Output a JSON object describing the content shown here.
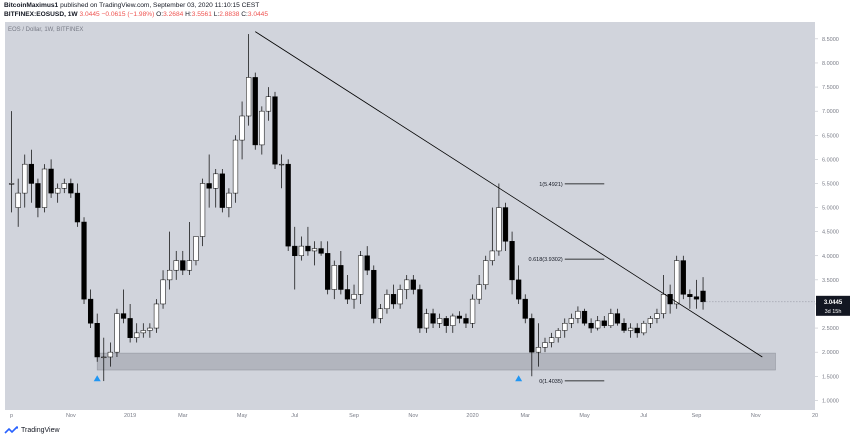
{
  "header": {
    "author": "BitcoinMaximus1",
    "published_text": "published on TradingView.com, September 03, 2020 11:10:15 CEST",
    "symbol": "BITFINEX:EOSUSD, 1W",
    "price_value": "3.0445",
    "change_text": "−0.0615 (−1.98%)",
    "ohlc": [
      {
        "label": "O:",
        "value": "3.2684"
      },
      {
        "label": "H:",
        "value": "3.5561"
      },
      {
        "label": "L:",
        "value": "2.8838"
      },
      {
        "label": "C:",
        "value": "3.0445"
      }
    ]
  },
  "footer": {
    "brand": "TradingView"
  },
  "colors": {
    "background": "#d1d4dc",
    "candle_up_fill": "#ffffff",
    "candle_down_fill": "#000000",
    "candle_outline": "#000000",
    "support_zone": "#b2b5be",
    "marker": "#2196f3",
    "price_label_bg": "#131722"
  },
  "chart_data": {
    "type": "candlestick",
    "title": "EOS / Dollar, 1W, BITFINEX",
    "y_scale": "linear",
    "ylim": [
      0.8,
      8.85
    ],
    "y_ticks": [
      "1.0000",
      "1.5000",
      "2.0000",
      "2.5000",
      "3.0000",
      "3.5000",
      "4.0000",
      "4.5000",
      "5.0000",
      "5.5000",
      "6.0000",
      "6.5000",
      "7.0000",
      "7.5000",
      "8.0000",
      "8.5000"
    ],
    "x_ticks": [
      {
        "label": "p",
        "week": 0
      },
      {
        "label": "Nov",
        "week": 9
      },
      {
        "label": "2019",
        "week": 18
      },
      {
        "label": "Mar",
        "week": 26
      },
      {
        "label": "May",
        "week": 35
      },
      {
        "label": "Jul",
        "week": 43
      },
      {
        "label": "Sep",
        "week": 52
      },
      {
        "label": "Nov",
        "week": 61
      },
      {
        "label": "2020",
        "week": 70
      },
      {
        "label": "Mar",
        "week": 78
      },
      {
        "label": "May",
        "week": 87
      },
      {
        "label": "Jul",
        "week": 96
      },
      {
        "label": "Sep",
        "week": 104
      },
      {
        "label": "Nov",
        "week": 113
      },
      {
        "label": "20",
        "week": 122
      }
    ],
    "week_range": [
      -1,
      122
    ],
    "candles": [
      {
        "o": 5.5,
        "h": 7.0,
        "l": 4.9,
        "c": 5.5
      },
      {
        "o": 5.0,
        "h": 5.6,
        "l": 4.6,
        "c": 5.3
      },
      {
        "o": 5.3,
        "h": 6.1,
        "l": 5.0,
        "c": 5.9
      },
      {
        "o": 5.9,
        "h": 6.2,
        "l": 5.1,
        "c": 5.5
      },
      {
        "o": 5.5,
        "h": 5.6,
        "l": 4.8,
        "c": 5.0
      },
      {
        "o": 5.0,
        "h": 5.9,
        "l": 4.9,
        "c": 5.8
      },
      {
        "o": 5.8,
        "h": 6.0,
        "l": 5.2,
        "c": 5.3
      },
      {
        "o": 5.3,
        "h": 5.5,
        "l": 5.1,
        "c": 5.4
      },
      {
        "o": 5.4,
        "h": 5.6,
        "l": 5.3,
        "c": 5.5
      },
      {
        "o": 5.5,
        "h": 5.6,
        "l": 5.2,
        "c": 5.3
      },
      {
        "o": 5.3,
        "h": 5.5,
        "l": 4.6,
        "c": 4.7
      },
      {
        "o": 4.7,
        "h": 4.8,
        "l": 3.0,
        "c": 3.1
      },
      {
        "o": 3.1,
        "h": 3.3,
        "l": 2.5,
        "c": 2.6
      },
      {
        "o": 2.6,
        "h": 2.8,
        "l": 1.8,
        "c": 1.9
      },
      {
        "o": 1.9,
        "h": 2.3,
        "l": 1.4,
        "c": 1.9
      },
      {
        "o": 1.9,
        "h": 2.2,
        "l": 1.7,
        "c": 2.0
      },
      {
        "o": 2.0,
        "h": 2.9,
        "l": 1.9,
        "c": 2.8
      },
      {
        "o": 2.8,
        "h": 3.3,
        "l": 2.6,
        "c": 2.7
      },
      {
        "o": 2.7,
        "h": 3.0,
        "l": 2.2,
        "c": 2.3
      },
      {
        "o": 2.3,
        "h": 2.6,
        "l": 2.2,
        "c": 2.4
      },
      {
        "o": 2.4,
        "h": 2.6,
        "l": 2.3,
        "c": 2.45
      },
      {
        "o": 2.45,
        "h": 2.6,
        "l": 2.3,
        "c": 2.5
      },
      {
        "o": 2.5,
        "h": 3.1,
        "l": 2.4,
        "c": 3.0
      },
      {
        "o": 3.0,
        "h": 3.7,
        "l": 2.9,
        "c": 3.5
      },
      {
        "o": 3.5,
        "h": 4.5,
        "l": 3.3,
        "c": 3.7
      },
      {
        "o": 3.7,
        "h": 4.1,
        "l": 3.5,
        "c": 3.9
      },
      {
        "o": 3.9,
        "h": 4.1,
        "l": 3.6,
        "c": 3.7
      },
      {
        "o": 3.7,
        "h": 4.7,
        "l": 3.6,
        "c": 3.9
      },
      {
        "o": 3.9,
        "h": 4.4,
        "l": 3.8,
        "c": 4.4
      },
      {
        "o": 4.4,
        "h": 5.6,
        "l": 4.2,
        "c": 5.5
      },
      {
        "o": 5.5,
        "h": 6.1,
        "l": 5.0,
        "c": 5.4
      },
      {
        "o": 5.4,
        "h": 5.8,
        "l": 5.0,
        "c": 5.7
      },
      {
        "o": 5.7,
        "h": 5.8,
        "l": 4.9,
        "c": 5.0
      },
      {
        "o": 5.0,
        "h": 5.4,
        "l": 4.8,
        "c": 5.3
      },
      {
        "o": 5.3,
        "h": 6.5,
        "l": 5.1,
        "c": 6.4
      },
      {
        "o": 6.4,
        "h": 7.2,
        "l": 6.0,
        "c": 6.9
      },
      {
        "o": 6.9,
        "h": 8.6,
        "l": 6.7,
        "c": 7.7
      },
      {
        "o": 7.7,
        "h": 7.8,
        "l": 6.2,
        "c": 6.3
      },
      {
        "o": 6.3,
        "h": 7.1,
        "l": 6.1,
        "c": 7.0
      },
      {
        "o": 7.0,
        "h": 7.5,
        "l": 6.8,
        "c": 7.3
      },
      {
        "o": 7.3,
        "h": 7.4,
        "l": 5.8,
        "c": 5.9
      },
      {
        "o": 5.9,
        "h": 6.1,
        "l": 5.4,
        "c": 5.9
      },
      {
        "o": 5.9,
        "h": 6.0,
        "l": 4.1,
        "c": 4.2
      },
      {
        "o": 4.2,
        "h": 4.6,
        "l": 3.3,
        "c": 4.0
      },
      {
        "o": 4.0,
        "h": 4.4,
        "l": 3.9,
        "c": 4.2
      },
      {
        "o": 4.2,
        "h": 4.6,
        "l": 4.0,
        "c": 4.1
      },
      {
        "o": 4.1,
        "h": 4.3,
        "l": 3.8,
        "c": 4.15
      },
      {
        "o": 4.15,
        "h": 4.3,
        "l": 4.0,
        "c": 4.05
      },
      {
        "o": 4.05,
        "h": 4.3,
        "l": 3.2,
        "c": 3.3
      },
      {
        "o": 3.3,
        "h": 3.9,
        "l": 3.1,
        "c": 3.8
      },
      {
        "o": 3.8,
        "h": 4.1,
        "l": 3.2,
        "c": 3.3
      },
      {
        "o": 3.3,
        "h": 3.6,
        "l": 3.0,
        "c": 3.1
      },
      {
        "o": 3.1,
        "h": 3.4,
        "l": 2.9,
        "c": 3.2
      },
      {
        "o": 3.2,
        "h": 4.1,
        "l": 3.0,
        "c": 4.0
      },
      {
        "o": 4.0,
        "h": 4.2,
        "l": 3.6,
        "c": 3.7
      },
      {
        "o": 3.7,
        "h": 3.8,
        "l": 2.6,
        "c": 2.7
      },
      {
        "o": 2.7,
        "h": 3.0,
        "l": 2.6,
        "c": 2.9
      },
      {
        "o": 2.9,
        "h": 3.3,
        "l": 2.8,
        "c": 3.2
      },
      {
        "o": 3.2,
        "h": 3.4,
        "l": 2.9,
        "c": 3.0
      },
      {
        "o": 3.0,
        "h": 3.4,
        "l": 2.9,
        "c": 3.3
      },
      {
        "o": 3.3,
        "h": 3.6,
        "l": 3.1,
        "c": 3.5
      },
      {
        "o": 3.5,
        "h": 3.6,
        "l": 3.2,
        "c": 3.3
      },
      {
        "o": 3.3,
        "h": 3.4,
        "l": 2.4,
        "c": 2.5
      },
      {
        "o": 2.5,
        "h": 2.9,
        "l": 2.4,
        "c": 2.8
      },
      {
        "o": 2.8,
        "h": 2.9,
        "l": 2.5,
        "c": 2.6
      },
      {
        "o": 2.6,
        "h": 2.8,
        "l": 2.5,
        "c": 2.7
      },
      {
        "o": 2.7,
        "h": 2.75,
        "l": 2.4,
        "c": 2.55
      },
      {
        "o": 2.55,
        "h": 2.8,
        "l": 2.4,
        "c": 2.75
      },
      {
        "o": 2.75,
        "h": 2.85,
        "l": 2.6,
        "c": 2.7
      },
      {
        "o": 2.7,
        "h": 2.8,
        "l": 2.5,
        "c": 2.6
      },
      {
        "o": 2.6,
        "h": 3.2,
        "l": 2.5,
        "c": 3.1
      },
      {
        "o": 3.1,
        "h": 3.6,
        "l": 3.0,
        "c": 3.4
      },
      {
        "o": 3.4,
        "h": 4.0,
        "l": 3.3,
        "c": 3.9
      },
      {
        "o": 3.9,
        "h": 5.0,
        "l": 3.8,
        "c": 4.1
      },
      {
        "o": 4.1,
        "h": 5.5,
        "l": 4.0,
        "c": 5.0
      },
      {
        "o": 5.0,
        "h": 5.1,
        "l": 4.1,
        "c": 4.3
      },
      {
        "o": 4.3,
        "h": 4.5,
        "l": 3.2,
        "c": 3.5
      },
      {
        "o": 3.5,
        "h": 3.8,
        "l": 3.0,
        "c": 3.1
      },
      {
        "o": 3.1,
        "h": 3.2,
        "l": 2.6,
        "c": 2.7
      },
      {
        "o": 2.7,
        "h": 2.8,
        "l": 1.5,
        "c": 2.0
      },
      {
        "o": 2.0,
        "h": 2.6,
        "l": 1.7,
        "c": 2.1
      },
      {
        "o": 2.1,
        "h": 2.3,
        "l": 2.0,
        "c": 2.2
      },
      {
        "o": 2.2,
        "h": 2.4,
        "l": 2.1,
        "c": 2.3
      },
      {
        "o": 2.3,
        "h": 2.5,
        "l": 2.2,
        "c": 2.45
      },
      {
        "o": 2.45,
        "h": 2.7,
        "l": 2.3,
        "c": 2.6
      },
      {
        "o": 2.6,
        "h": 2.8,
        "l": 2.5,
        "c": 2.7
      },
      {
        "o": 2.7,
        "h": 2.95,
        "l": 2.6,
        "c": 2.85
      },
      {
        "o": 2.85,
        "h": 2.9,
        "l": 2.55,
        "c": 2.6
      },
      {
        "o": 2.6,
        "h": 2.7,
        "l": 2.4,
        "c": 2.5
      },
      {
        "o": 2.5,
        "h": 2.75,
        "l": 2.45,
        "c": 2.65
      },
      {
        "o": 2.65,
        "h": 2.75,
        "l": 2.5,
        "c": 2.55
      },
      {
        "o": 2.55,
        "h": 2.9,
        "l": 2.5,
        "c": 2.8
      },
      {
        "o": 2.8,
        "h": 2.9,
        "l": 2.55,
        "c": 2.6
      },
      {
        "o": 2.6,
        "h": 2.7,
        "l": 2.4,
        "c": 2.45
      },
      {
        "o": 2.45,
        "h": 2.6,
        "l": 2.3,
        "c": 2.5
      },
      {
        "o": 2.5,
        "h": 2.6,
        "l": 2.3,
        "c": 2.4
      },
      {
        "o": 2.4,
        "h": 2.65,
        "l": 2.35,
        "c": 2.6
      },
      {
        "o": 2.6,
        "h": 2.75,
        "l": 2.5,
        "c": 2.7
      },
      {
        "o": 2.7,
        "h": 2.9,
        "l": 2.6,
        "c": 2.8
      },
      {
        "o": 2.8,
        "h": 3.6,
        "l": 2.7,
        "c": 3.2
      },
      {
        "o": 3.2,
        "h": 3.4,
        "l": 2.8,
        "c": 3.0
      },
      {
        "o": 3.0,
        "h": 4.0,
        "l": 2.9,
        "c": 3.9
      },
      {
        "o": 3.9,
        "h": 4.0,
        "l": 3.1,
        "c": 3.2
      },
      {
        "o": 3.2,
        "h": 3.3,
        "l": 2.9,
        "c": 3.15
      },
      {
        "o": 3.15,
        "h": 3.5,
        "l": 2.9,
        "c": 3.1
      },
      {
        "o": 3.2684,
        "h": 3.5561,
        "l": 2.8838,
        "c": 3.0445
      }
    ],
    "trendline": {
      "from": {
        "week": 37,
        "price": 8.65
      },
      "to": {
        "week": 114,
        "price": 1.9
      }
    },
    "support_zone": {
      "from_week": 13,
      "to_week": 116,
      "low": 1.63,
      "high": 1.98
    },
    "fib_levels": [
      {
        "label": "1(5.4921)",
        "value": 5.4921
      },
      {
        "label": "0.618(3.9302)",
        "value": 3.9302
      },
      {
        "label": "0(1.4035)",
        "value": 1.4035
      }
    ],
    "fib_line_weeks": [
      84,
      90
    ],
    "markers": [
      {
        "week": 13,
        "price": 1.46
      },
      {
        "week": 77,
        "price": 1.46
      }
    ],
    "last_price_label": "3.0445",
    "countdown_label": "3d 15h"
  }
}
